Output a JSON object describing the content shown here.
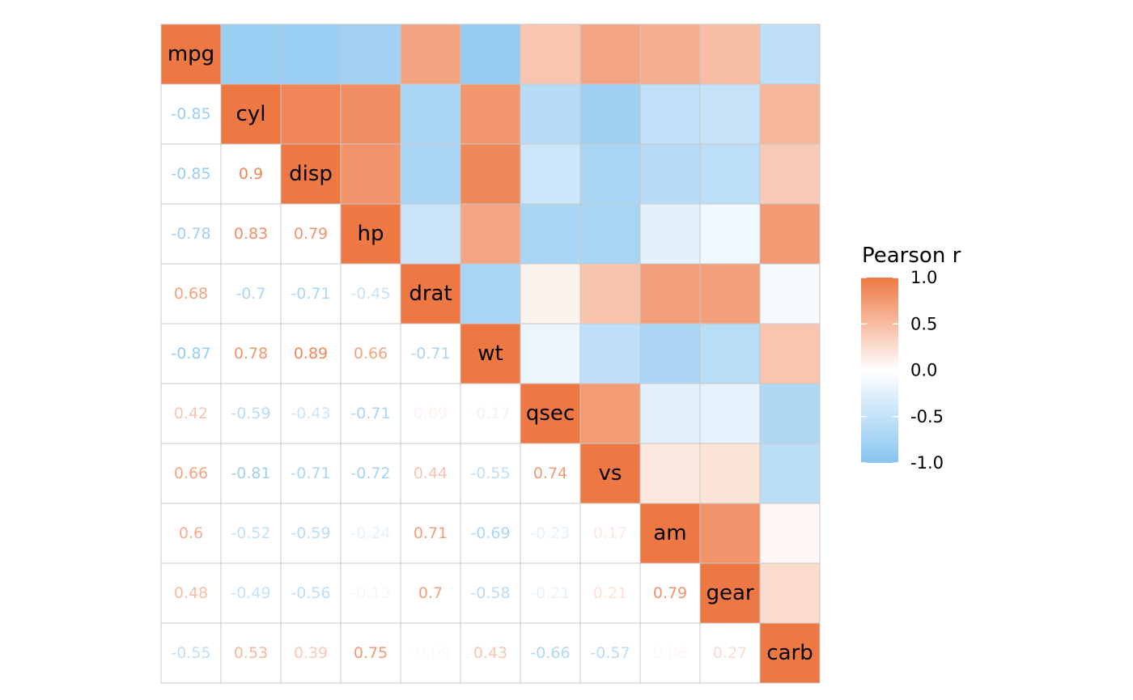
{
  "chart_data": {
    "type": "heatmap",
    "variables": [
      "mpg",
      "cyl",
      "disp",
      "hp",
      "drat",
      "wt",
      "qsec",
      "vs",
      "am",
      "gear",
      "carb"
    ],
    "matrix": [
      [
        1,
        -0.85,
        -0.85,
        -0.78,
        0.68,
        -0.87,
        0.42,
        0.66,
        0.6,
        0.48,
        -0.55
      ],
      [
        -0.85,
        1,
        0.9,
        0.83,
        -0.7,
        0.78,
        -0.59,
        -0.81,
        -0.52,
        -0.49,
        0.53
      ],
      [
        -0.85,
        0.9,
        1,
        0.79,
        -0.71,
        0.89,
        -0.43,
        -0.71,
        -0.59,
        -0.56,
        0.39
      ],
      [
        -0.78,
        0.83,
        0.79,
        1,
        -0.45,
        0.66,
        -0.71,
        -0.72,
        -0.24,
        -0.13,
        0.75
      ],
      [
        0.68,
        -0.7,
        -0.71,
        -0.45,
        1,
        -0.71,
        0.09,
        0.44,
        0.71,
        0.7,
        -0.09
      ],
      [
        -0.87,
        0.78,
        0.89,
        0.66,
        -0.71,
        1,
        -0.17,
        -0.55,
        -0.69,
        -0.58,
        0.43
      ],
      [
        0.42,
        -0.59,
        -0.43,
        -0.71,
        0.09,
        -0.17,
        1,
        0.74,
        -0.23,
        -0.21,
        -0.66
      ],
      [
        0.66,
        -0.81,
        -0.71,
        -0.72,
        0.44,
        -0.55,
        0.74,
        1,
        0.17,
        0.21,
        -0.57
      ],
      [
        0.6,
        -0.52,
        -0.59,
        -0.24,
        0.71,
        -0.69,
        -0.23,
        0.17,
        1,
        0.79,
        0.06
      ],
      [
        0.48,
        -0.49,
        -0.56,
        -0.13,
        0.7,
        -0.58,
        -0.21,
        0.21,
        0.79,
        1,
        0.27
      ],
      [
        -0.55,
        0.53,
        0.39,
        0.75,
        -0.09,
        0.43,
        -0.66,
        -0.57,
        0.06,
        0.27,
        1
      ]
    ],
    "upper_triangle": "color fill",
    "lower_triangle": "text labels",
    "diagonal": "variable names",
    "colors": {
      "low": "#88c4f0",
      "mid": "#ffffff",
      "high": "#ee7844"
    },
    "legend": {
      "title": "Pearson r",
      "ticks": [
        "1.0",
        "0.5",
        "0.0",
        "-0.5",
        "-1.0"
      ],
      "range": [
        -1,
        1
      ],
      "position": "right"
    }
  }
}
